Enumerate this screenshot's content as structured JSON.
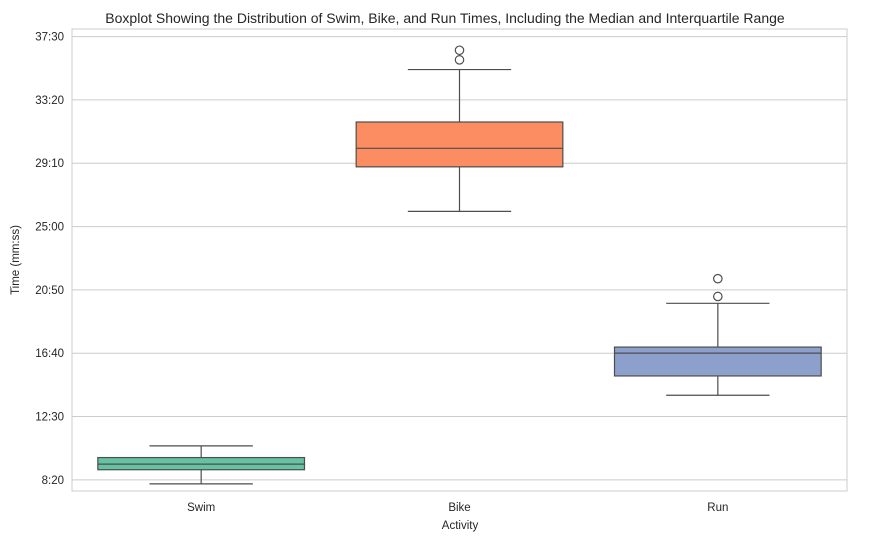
{
  "chart_data": {
    "type": "boxplot",
    "title": "Boxplot Showing the Distribution of Swim, Bike, and Run Times, Including the Median and Interquartile Range",
    "xlabel": "Activity",
    "ylabel": "Time (mm:ss)",
    "ylim": [
      7.6,
      38.0
    ],
    "y_ticks": [
      8.3333,
      12.5,
      16.6667,
      20.8333,
      25.0,
      29.1667,
      33.3333,
      37.5
    ],
    "y_tick_labels": [
      "8:20",
      "12:30",
      "16:40",
      "20:50",
      "25:00",
      "29:10",
      "33:20",
      "37:30"
    ],
    "grid": "horizontal",
    "categories": [
      "Swim",
      "Bike",
      "Run"
    ],
    "boxes": [
      {
        "category": "Swim",
        "color": "#66c2a5",
        "whisker_low": 8.07,
        "q1": 9.0,
        "median": 9.37,
        "q3": 9.8,
        "whisker_high": 10.57,
        "fliers": []
      },
      {
        "category": "Bike",
        "color": "#fc8d62",
        "whisker_low": 26.0,
        "q1": 28.93,
        "median": 30.15,
        "q3": 31.88,
        "whisker_high": 35.33,
        "fliers": [
          35.97,
          36.6
        ]
      },
      {
        "category": "Run",
        "color": "#8da0cb",
        "whisker_low": 13.9,
        "q1": 15.17,
        "median": 16.67,
        "q3": 17.07,
        "whisker_high": 19.95,
        "fliers": [
          20.4,
          21.57
        ]
      }
    ]
  }
}
